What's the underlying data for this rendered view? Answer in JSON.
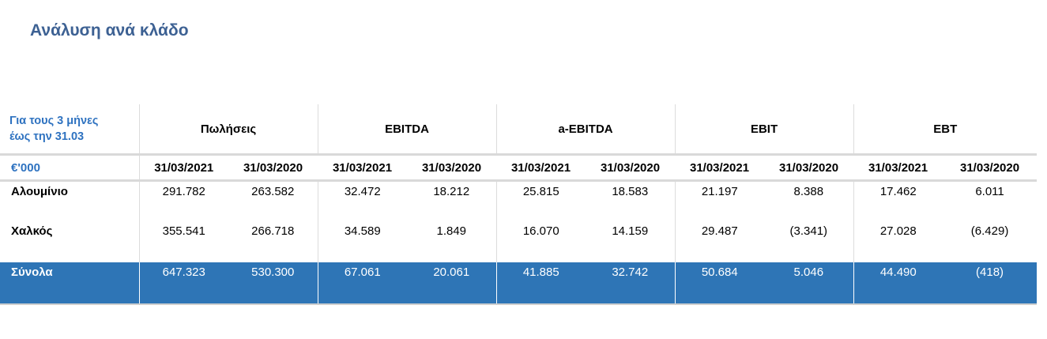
{
  "title": "Ανάλυση ανά κλάδο",
  "table": {
    "period_label_line1": "Για τους 3 μήνες",
    "period_label_line2": "έως την 31.03",
    "unit_label": "€'000",
    "groups": [
      "Πωλήσεις",
      "EBITDA",
      "a-EBITDA",
      "EBIT",
      "EBT"
    ],
    "dates": [
      "31/03/2021",
      "31/03/2020"
    ],
    "rows": [
      {
        "label": "Αλουμίνιο",
        "values": [
          "291.782",
          "263.582",
          "32.472",
          "18.212",
          "25.815",
          "18.583",
          "21.197",
          "8.388",
          "17.462",
          "6.011"
        ]
      },
      {
        "label": "Χαλκός",
        "values": [
          "355.541",
          "266.718",
          "34.589",
          "1.849",
          "16.070",
          "14.159",
          "29.487",
          "(3.341)",
          "27.028",
          "(6.429)"
        ]
      }
    ],
    "total": {
      "label": "Σύνολα",
      "values": [
        "647.323",
        "530.300",
        "67.061",
        "20.061",
        "41.885",
        "32.742",
        "50.684",
        "5.046",
        "44.490",
        "(418)"
      ]
    }
  },
  "colors": {
    "title": "#3d6193",
    "accent_blue": "#2e72c0",
    "total_row_bg": "#2e75b6"
  }
}
